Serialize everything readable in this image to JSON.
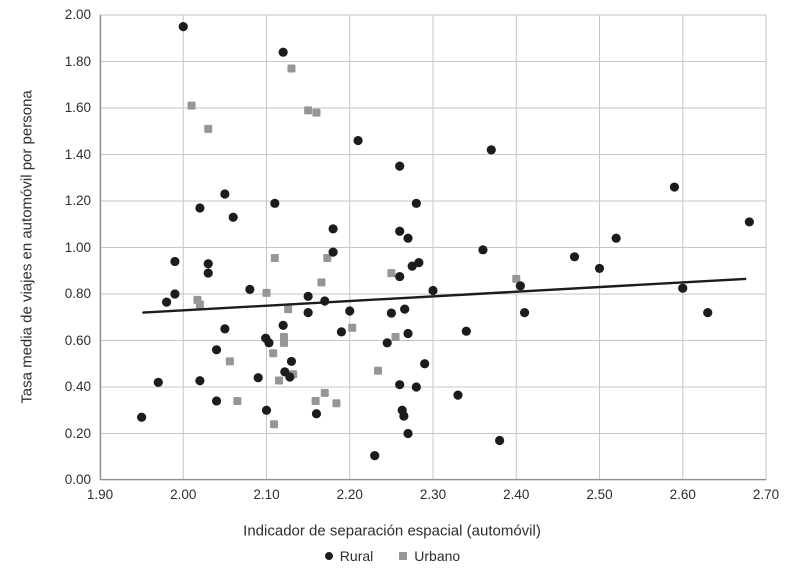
{
  "chart_data": {
    "type": "scatter",
    "title": "",
    "xlabel": "Indicador de separación espacial (automóvil)",
    "ylabel": "Tasa media de viajes en automóvil por persona",
    "xlim": [
      1.9,
      2.7
    ],
    "ylim": [
      0.0,
      2.0
    ],
    "x_ticks": [
      "1.90",
      "2.00",
      "2.10",
      "2.20",
      "2.30",
      "2.40",
      "2.50",
      "2.60",
      "2.70"
    ],
    "y_ticks": [
      "0.00",
      "0.20",
      "0.40",
      "0.60",
      "0.80",
      "1.00",
      "1.20",
      "1.40",
      "1.60",
      "1.80",
      "2.00"
    ],
    "grid": true,
    "legend_position": "bottom",
    "series": [
      {
        "name": "Rural",
        "marker": "circle",
        "color": "#1c1c1c",
        "points": [
          [
            2.0,
            1.95
          ],
          [
            2.12,
            1.84
          ],
          [
            2.21,
            1.46
          ],
          [
            2.37,
            1.42
          ],
          [
            2.26,
            1.35
          ],
          [
            2.59,
            1.26
          ],
          [
            2.05,
            1.23
          ],
          [
            2.11,
            1.19
          ],
          [
            2.28,
            1.19
          ],
          [
            2.02,
            1.17
          ],
          [
            2.06,
            1.13
          ],
          [
            2.68,
            1.11
          ],
          [
            2.18,
            1.08
          ],
          [
            2.26,
            1.07
          ],
          [
            2.27,
            1.04
          ],
          [
            2.52,
            1.04
          ],
          [
            2.36,
            0.99
          ],
          [
            2.18,
            0.98
          ],
          [
            2.47,
            0.96
          ],
          [
            1.99,
            0.94
          ],
          [
            2.283,
            0.935
          ],
          [
            2.03,
            0.93
          ],
          [
            2.275,
            0.92
          ],
          [
            2.5,
            0.91
          ],
          [
            2.03,
            0.89
          ],
          [
            2.26,
            0.875
          ],
          [
            2.405,
            0.835
          ],
          [
            2.6,
            0.825
          ],
          [
            2.08,
            0.82
          ],
          [
            2.3,
            0.815
          ],
          [
            1.99,
            0.8
          ],
          [
            2.15,
            0.79
          ],
          [
            2.17,
            0.77
          ],
          [
            1.98,
            0.765
          ],
          [
            2.266,
            0.735
          ],
          [
            2.2,
            0.727
          ],
          [
            2.63,
            0.72
          ],
          [
            2.15,
            0.72
          ],
          [
            2.25,
            0.718
          ],
          [
            2.41,
            0.72
          ],
          [
            2.12,
            0.665
          ],
          [
            2.05,
            0.65
          ],
          [
            2.34,
            0.64
          ],
          [
            2.19,
            0.637
          ],
          [
            2.27,
            0.63
          ],
          [
            2.099,
            0.61
          ],
          [
            2.245,
            0.59
          ],
          [
            2.103,
            0.59
          ],
          [
            2.04,
            0.56
          ],
          [
            2.13,
            0.51
          ],
          [
            2.29,
            0.5
          ],
          [
            2.122,
            0.465
          ],
          [
            2.128,
            0.443
          ],
          [
            2.09,
            0.44
          ],
          [
            2.02,
            0.427
          ],
          [
            1.97,
            0.42
          ],
          [
            2.26,
            0.41
          ],
          [
            2.28,
            0.4
          ],
          [
            2.33,
            0.365
          ],
          [
            2.04,
            0.34
          ],
          [
            2.1,
            0.3
          ],
          [
            2.16,
            0.285
          ],
          [
            2.263,
            0.3
          ],
          [
            2.265,
            0.275
          ],
          [
            1.95,
            0.27
          ],
          [
            2.27,
            0.2
          ],
          [
            2.38,
            0.17
          ],
          [
            2.23,
            0.105
          ]
        ]
      },
      {
        "name": "Urbano",
        "marker": "square",
        "color": "#969696",
        "points": [
          [
            2.13,
            1.77
          ],
          [
            2.01,
            1.61
          ],
          [
            2.15,
            1.59
          ],
          [
            2.16,
            1.58
          ],
          [
            2.03,
            1.51
          ],
          [
            2.11,
            0.955
          ],
          [
            2.173,
            0.955
          ],
          [
            2.25,
            0.89
          ],
          [
            2.4,
            0.865
          ],
          [
            2.166,
            0.85
          ],
          [
            2.1,
            0.805
          ],
          [
            2.017,
            0.775
          ],
          [
            2.02,
            0.755
          ],
          [
            2.126,
            0.735
          ],
          [
            2.203,
            0.655
          ],
          [
            2.121,
            0.615
          ],
          [
            2.255,
            0.615
          ],
          [
            2.121,
            0.59
          ],
          [
            2.108,
            0.545
          ],
          [
            2.056,
            0.51
          ],
          [
            2.234,
            0.47
          ],
          [
            2.132,
            0.455
          ],
          [
            2.115,
            0.428
          ],
          [
            2.17,
            0.375
          ],
          [
            2.065,
            0.34
          ],
          [
            2.159,
            0.34
          ],
          [
            2.184,
            0.33
          ],
          [
            2.109,
            0.24
          ]
        ]
      }
    ],
    "trendline": {
      "x1": 1.952,
      "y1": 0.72,
      "x2": 2.675,
      "y2": 0.865,
      "color": "#1c1c1c"
    }
  },
  "legend": {
    "rural_label": "Rural",
    "urbano_label": "Urbano"
  },
  "colors": {
    "gridline": "#c6c6c6",
    "axis": "#8f8f8f",
    "tick_text": "#2e2e2e",
    "rural": "#1c1c1c",
    "urbano": "#969696",
    "trendline": "#1c1c1c"
  }
}
